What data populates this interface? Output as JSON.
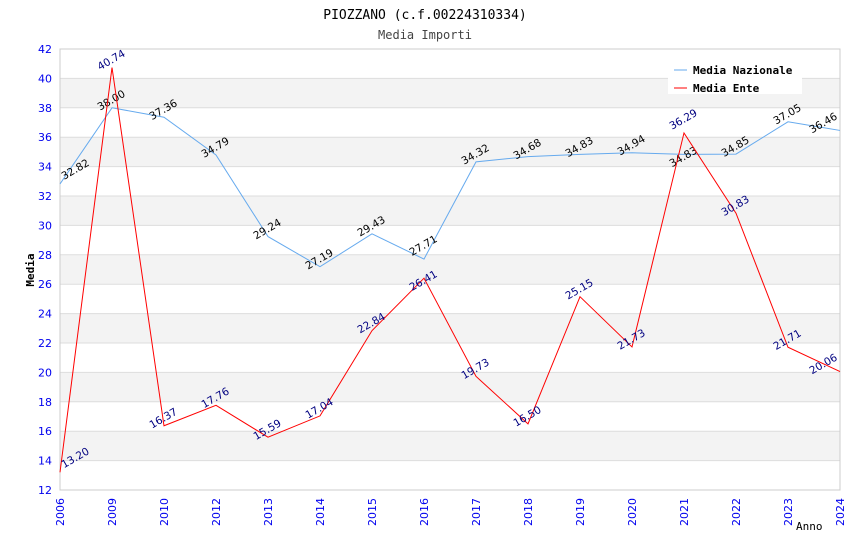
{
  "chart_data": {
    "type": "line",
    "title": "PIOZZANO (c.f.00224310334)",
    "subtitle": "Media Importi",
    "xlabel": "Anno",
    "ylabel": "Media",
    "ylim": [
      12,
      42
    ],
    "yticks": [
      12,
      14,
      16,
      18,
      20,
      22,
      24,
      26,
      28,
      30,
      32,
      34,
      36,
      38,
      40,
      42
    ],
    "categories": [
      "2006",
      "2009",
      "2010",
      "2012",
      "2013",
      "2014",
      "2015",
      "2016",
      "2017",
      "2018",
      "2019",
      "2020",
      "2021",
      "2022",
      "2023",
      "2024"
    ],
    "grid": true,
    "legend_position": "top-right",
    "series": [
      {
        "name": "Media Nazionale",
        "color": "#66aaee",
        "label_color": "#000000",
        "values": [
          32.82,
          38.0,
          37.36,
          34.79,
          29.24,
          27.19,
          29.43,
          27.71,
          34.32,
          34.68,
          34.83,
          34.94,
          34.83,
          34.85,
          37.05,
          36.46
        ]
      },
      {
        "name": "Media Ente",
        "color": "#ff0000",
        "label_color": "#000080",
        "values": [
          13.2,
          40.74,
          16.37,
          17.76,
          15.59,
          17.04,
          22.84,
          26.41,
          19.73,
          16.5,
          25.15,
          21.73,
          36.29,
          30.83,
          21.71,
          20.06
        ]
      }
    ]
  }
}
